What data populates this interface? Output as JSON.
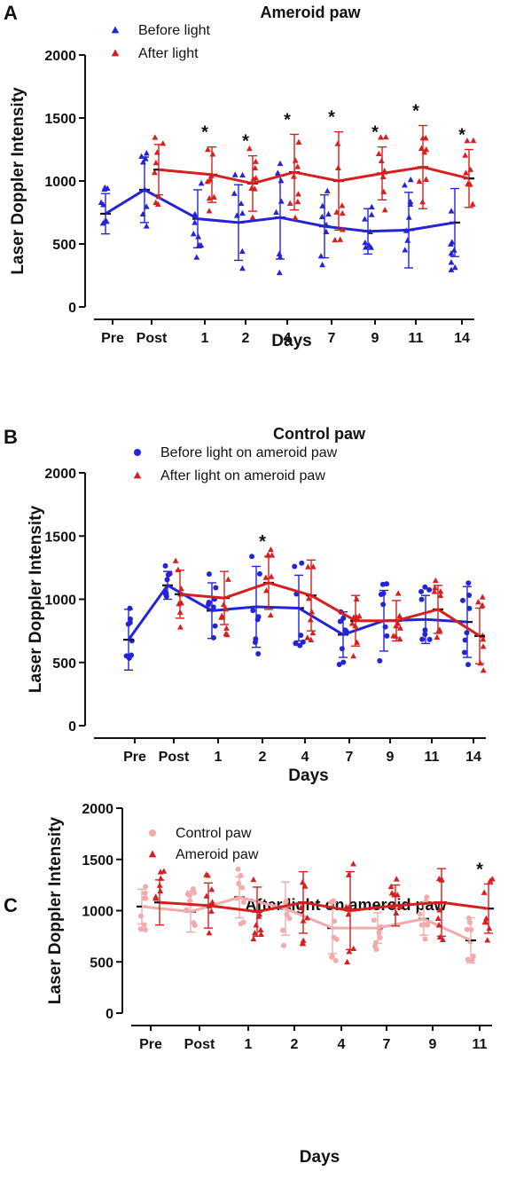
{
  "chart_data": [
    {
      "type": "line",
      "panel": "A",
      "title": "Ameroid paw",
      "xlabel": "Days",
      "ylabel": "Laser Doppler Intensity",
      "ylim": [
        0,
        2000
      ],
      "yticks": [
        0,
        500,
        1000,
        1500,
        2000
      ],
      "categories": [
        "Pre",
        "Post",
        "1",
        "2",
        "4",
        "7",
        "9",
        "11",
        "14"
      ],
      "grid": false,
      "legend": "top-left",
      "significance": [
        "",
        "",
        "*",
        "*",
        "*",
        "*",
        "*",
        "*",
        "*"
      ],
      "series": [
        {
          "name": "Before light",
          "color": "#2424d6",
          "marker": "triangle",
          "values": [
            740,
            930,
            700,
            670,
            710,
            640,
            600,
            610,
            670
          ],
          "err": [
            160,
            260,
            230,
            300,
            330,
            250,
            180,
            300,
            270
          ]
        },
        {
          "name": "After light",
          "color": "#d62020",
          "marker": "triangle",
          "start": 1,
          "values": [
            null,
            1090,
            1050,
            980,
            1070,
            1000,
            1060,
            1110,
            1020
          ],
          "err": [
            null,
            200,
            220,
            220,
            300,
            390,
            210,
            330,
            230
          ]
        }
      ]
    },
    {
      "type": "line",
      "panel": "B",
      "title": "Control paw",
      "xlabel": "Days",
      "ylabel": "Laser Doppler Intensity",
      "ylim": [
        0,
        2000
      ],
      "yticks": [
        0,
        500,
        1000,
        1500,
        2000
      ],
      "categories": [
        "Pre",
        "Post",
        "1",
        "2",
        "4",
        "7",
        "9",
        "11",
        "14"
      ],
      "grid": false,
      "legend": "top-left",
      "significance": [
        "",
        "",
        "",
        "*",
        "",
        "",
        "",
        "",
        ""
      ],
      "series": [
        {
          "name": "Before light on ameroid paw",
          "color": "#2424d6",
          "marker": "circle",
          "values": [
            680,
            1110,
            910,
            940,
            930,
            720,
            830,
            840,
            820
          ],
          "err": [
            240,
            110,
            220,
            320,
            260,
            180,
            240,
            190,
            280
          ]
        },
        {
          "name": "After light on ameroid paw",
          "color": "#d62020",
          "marker": "triangle",
          "start": 1,
          "values": [
            null,
            1040,
            1010,
            1130,
            1030,
            830,
            830,
            920,
            710
          ],
          "err": [
            null,
            190,
            210,
            210,
            280,
            200,
            160,
            190,
            220
          ]
        }
      ]
    },
    {
      "type": "line",
      "panel": "C",
      "title": "After light on ameroid paw",
      "xlabel": "Days",
      "ylabel": "Laser Doppler Intensity",
      "ylim": [
        0,
        2000
      ],
      "yticks": [
        0,
        500,
        1000,
        1500,
        2000
      ],
      "categories": [
        "Pre",
        "Post",
        "1",
        "2",
        "4",
        "7",
        "9",
        "11"
      ],
      "grid": false,
      "legend": "top-left",
      "significance": [
        "",
        "",
        "",
        "",
        "",
        "",
        "",
        "*"
      ],
      "series": [
        {
          "name": "Control paw",
          "color": "#f2aaaa",
          "marker": "circle",
          "values": [
            1040,
            990,
            1130,
            1020,
            830,
            830,
            920,
            710
          ],
          "err": [
            170,
            200,
            200,
            260,
            250,
            150,
            160,
            220
          ]
        },
        {
          "name": "Ameroid paw",
          "color": "#d62020",
          "marker": "triangle",
          "values": [
            1080,
            1050,
            990,
            1080,
            1000,
            1050,
            1080,
            1020
          ],
          "err": [
            220,
            220,
            240,
            300,
            380,
            200,
            330,
            240
          ]
        }
      ]
    }
  ]
}
